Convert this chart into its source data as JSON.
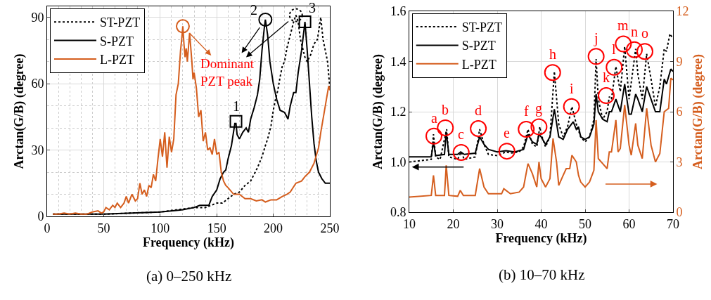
{
  "chart_data": [
    {
      "type": "line",
      "title": "(a) 0–250 kHz",
      "xlabel": "Frequency (kHz)",
      "ylabel": "Arctan(G/B) (degree)",
      "xlim": [
        0,
        250
      ],
      "xticks": [
        0,
        50,
        100,
        150,
        200,
        250
      ],
      "ylim": [
        0,
        95
      ],
      "yticks": [
        0,
        30,
        60,
        90
      ],
      "grid": true,
      "legend": "top left",
      "series": [
        {
          "name": "ST-PZT",
          "color": "#000000",
          "line_style": "dotted",
          "x": [
            5,
            50,
            100,
            130,
            140,
            145,
            150,
            155,
            160,
            165,
            170,
            175,
            180,
            183,
            186,
            190,
            193,
            195,
            198,
            200,
            202,
            204,
            206,
            208,
            210,
            212,
            215,
            218,
            220,
            222,
            224,
            226,
            228,
            230,
            233,
            236,
            239,
            242,
            244,
            246,
            248,
            250
          ],
          "values": [
            1,
            1,
            2,
            4,
            4,
            5,
            6,
            6,
            8,
            10,
            11,
            14,
            16,
            19,
            22,
            27,
            32,
            35,
            41,
            48,
            53,
            57,
            63,
            68,
            70,
            76,
            82,
            88,
            91,
            88,
            80,
            76,
            72,
            70,
            73,
            78,
            80,
            90,
            80,
            75,
            70,
            58
          ]
        },
        {
          "name": "S-PZT",
          "color": "#000000",
          "line_style": "solid",
          "x": [
            5,
            50,
            100,
            120,
            130,
            135,
            140,
            143,
            146,
            150,
            153,
            156,
            158,
            160,
            163,
            166,
            167,
            168,
            170,
            173,
            176,
            178,
            180,
            183,
            186,
            188,
            190,
            192,
            193,
            195,
            197,
            200,
            203,
            206,
            210,
            213,
            215,
            218,
            220,
            222,
            225,
            228,
            230,
            232,
            234,
            236,
            238,
            240,
            243,
            246,
            250
          ],
          "values": [
            1,
            1,
            2,
            3,
            4,
            5,
            5,
            5,
            9,
            12,
            17,
            20,
            21,
            26,
            32,
            42,
            42,
            37,
            35,
            38,
            40,
            38,
            44,
            49,
            55,
            62,
            75,
            85,
            89,
            82,
            70,
            60,
            53,
            48,
            47,
            44,
            50,
            56,
            56,
            65,
            75,
            88,
            75,
            60,
            45,
            33,
            25,
            20,
            17,
            15,
            15
          ]
        },
        {
          "name": "L-PZT",
          "color": "#d55e1e",
          "line_style": "solid",
          "x": [
            5,
            10,
            15,
            20,
            25,
            30,
            35,
            40,
            45,
            48,
            50,
            52,
            55,
            58,
            60,
            62,
            65,
            68,
            70,
            72,
            75,
            78,
            80,
            82,
            84,
            86,
            88,
            90,
            92,
            94,
            96,
            98,
            100,
            102,
            104,
            106,
            108,
            110,
            112,
            114,
            116,
            118,
            119,
            120,
            121,
            122,
            123,
            124,
            126,
            128,
            129,
            130,
            132,
            134,
            136,
            138,
            140,
            142,
            144,
            146,
            148,
            150,
            152,
            154,
            156,
            158,
            160,
            165,
            170,
            175,
            180,
            185,
            190,
            193,
            198,
            203,
            208,
            212,
            215,
            220,
            225,
            228,
            232,
            236,
            240,
            242,
            245,
            247,
            249,
            250
          ],
          "values": [
            1,
            1,
            1.5,
            1,
            1.5,
            1,
            1,
            2,
            2.5,
            1.5,
            2,
            4,
            3,
            5,
            4,
            6,
            4,
            6,
            9,
            6,
            10,
            7,
            8,
            15,
            10,
            12,
            9,
            14,
            13,
            19,
            16,
            26,
            35,
            27,
            38,
            22,
            36,
            29,
            35,
            55,
            60,
            75,
            80,
            86,
            78,
            72,
            76,
            70,
            83,
            70,
            62,
            65,
            58,
            45,
            48,
            34,
            38,
            30,
            31,
            28,
            35,
            28,
            29,
            20,
            16,
            14,
            13,
            10,
            10,
            8,
            8,
            7,
            7.5,
            6.5,
            7.5,
            7.5,
            9,
            10,
            11,
            15,
            16,
            18,
            20,
            24,
            31,
            38,
            47,
            53,
            59,
            57
          ]
        }
      ],
      "annotations": [
        {
          "text": "1",
          "x": 167,
          "y": 43
        },
        {
          "text": "2",
          "x": 193,
          "y": 89
        },
        {
          "text": "3",
          "x": 228,
          "y": 88
        },
        {
          "text": "Dominant PZT peak",
          "x": 120,
          "y": 86
        }
      ]
    },
    {
      "type": "line",
      "title": "(b) 10–70 kHz",
      "xlabel": "Frequency (kHz)",
      "ylabel": "Arctan(G/B) (degree)",
      "y2label": "Arctan(G/B) (degree)",
      "xlim": [
        10,
        70
      ],
      "xticks": [
        10,
        20,
        30,
        40,
        50,
        60,
        70
      ],
      "ylim": [
        0.8,
        1.6
      ],
      "yticks": [
        0.8,
        {
          "value": 1,
          "label": "1.0"
        },
        1.2,
        1.4,
        1.6
      ],
      "y2lim": [
        0,
        12
      ],
      "y2ticks": [
        0,
        3,
        6,
        9,
        12
      ],
      "grid": true,
      "legend": "top left",
      "series": [
        {
          "name": "ST-PZT",
          "color": "#000000",
          "line_style": "dotted",
          "x": [
            10,
            15,
            15.5,
            16,
            17,
            18.5,
            19,
            21,
            21.8,
            22.5,
            25,
            26,
            27,
            28,
            30,
            32,
            33,
            35,
            36,
            37,
            38,
            39,
            39.7,
            40,
            41,
            42,
            43,
            44,
            45,
            46,
            47,
            48,
            49,
            50,
            51,
            52,
            52.5,
            53,
            54,
            55,
            55.5,
            56,
            57,
            58,
            59,
            60,
            61.5,
            62,
            63,
            64,
            65,
            66,
            67,
            68,
            68.5,
            69.3,
            70
          ],
          "values": [
            1.0,
            1.01,
            1.11,
            1.02,
            1.01,
            1.13,
            1.02,
            1.01,
            1.04,
            1.01,
            1.02,
            1.13,
            1.07,
            1.03,
            1.025,
            1.04,
            1.035,
            1.04,
            1.06,
            1.13,
            1.07,
            1.06,
            1.14,
            1.11,
            1.06,
            1.1,
            1.36,
            1.15,
            1.1,
            1.14,
            1.22,
            1.15,
            1.1,
            1.08,
            1.1,
            1.17,
            1.41,
            1.25,
            1.17,
            1.2,
            1.26,
            1.25,
            1.38,
            1.28,
            1.46,
            1.25,
            1.45,
            1.35,
            1.25,
            1.43,
            1.33,
            1.22,
            1.3,
            1.45,
            1.44,
            1.51,
            1.49
          ]
        },
        {
          "name": "S-PZT",
          "color": "#000000",
          "line_style": "solid",
          "x": [
            10,
            15,
            15.5,
            16,
            18,
            18.4,
            19,
            21,
            21.7,
            22.5,
            25,
            26,
            27,
            28,
            30,
            32,
            34,
            36,
            37,
            38,
            39,
            39.5,
            40,
            41,
            42,
            43,
            44,
            45,
            46,
            47.3,
            48,
            48.5,
            49,
            50,
            51,
            52,
            52.5,
            53,
            54,
            55,
            55.5,
            56,
            57,
            58,
            59,
            60,
            60.5,
            61.5,
            62,
            63,
            64,
            65,
            66,
            67,
            68,
            68.5,
            69.5,
            70
          ],
          "values": [
            1.02,
            1.02,
            1.08,
            1.025,
            1.03,
            1.12,
            1.03,
            1.03,
            1.04,
            1.03,
            1.035,
            1.1,
            1.07,
            1.05,
            1.04,
            1.045,
            1.04,
            1.05,
            1.11,
            1.08,
            1.07,
            1.11,
            1.1,
            1.07,
            1.1,
            1.21,
            1.1,
            1.09,
            1.13,
            1.16,
            1.13,
            1.14,
            1.1,
            1.09,
            1.1,
            1.15,
            1.27,
            1.2,
            1.17,
            1.16,
            1.2,
            1.2,
            1.25,
            1.2,
            1.31,
            1.19,
            1.19,
            1.27,
            1.25,
            1.2,
            1.3,
            1.25,
            1.2,
            1.2,
            1.33,
            1.31,
            1.37,
            1.36
          ]
        },
        {
          "name": "L-PZT",
          "color": "#d55e1e",
          "line_style": "solid",
          "axis": "y2",
          "x": [
            10,
            15,
            15.5,
            16,
            18,
            18.4,
            19,
            21,
            21.6,
            22.3,
            25,
            26,
            27,
            28,
            31,
            31.5,
            33,
            35,
            36,
            37,
            38,
            39,
            39.5,
            40,
            41,
            42,
            42.7,
            43.5,
            44,
            45,
            45.7,
            46.5,
            47,
            48,
            48.5,
            49,
            50,
            51,
            52,
            52.5,
            53,
            54,
            55,
            55.5,
            56,
            57,
            57.5,
            58,
            59,
            60,
            60.5,
            61.5,
            62,
            63,
            64,
            65,
            66,
            67,
            68,
            69,
            69.5,
            70
          ],
          "values": [
            0.9,
            1.0,
            2.2,
            1.0,
            1.0,
            2.8,
            1.0,
            0.95,
            1.3,
            1.0,
            1.0,
            2.6,
            1.5,
            1.1,
            1.1,
            1.4,
            1.1,
            1.2,
            1.5,
            2.9,
            2.3,
            1.5,
            3.0,
            2.0,
            1.5,
            2.0,
            4.4,
            3.0,
            1.6,
            2.2,
            2.6,
            2.6,
            3.4,
            3.0,
            2.2,
            1.8,
            1.5,
            1.8,
            2.5,
            5.5,
            3.2,
            2.9,
            2.6,
            3.6,
            3.6,
            5.5,
            3.6,
            3.8,
            6.4,
            4.0,
            3.4,
            5.3,
            4.0,
            3.2,
            6.2,
            4.0,
            3.0,
            3.5,
            6.0,
            6.2,
            8.0,
            7.9
          ]
        }
      ],
      "annotations": [
        {
          "text": "a",
          "x": 15.6,
          "y": 1.103
        },
        {
          "text": "b",
          "x": 18.2,
          "y": 1.136
        },
        {
          "text": "c",
          "x": 21.8,
          "y": 1.038
        },
        {
          "text": "d",
          "x": 25.7,
          "y": 1.133
        },
        {
          "text": "e",
          "x": 32.2,
          "y": 1.043
        },
        {
          "text": "f",
          "x": 36.6,
          "y": 1.13
        },
        {
          "text": "g",
          "x": 39.5,
          "y": 1.14
        },
        {
          "text": "h",
          "x": 42.6,
          "y": 1.356
        },
        {
          "text": "i",
          "x": 46.9,
          "y": 1.22
        },
        {
          "text": "j",
          "x": 52.5,
          "y": 1.42
        },
        {
          "text": "k",
          "x": 54.8,
          "y": 1.264
        },
        {
          "text": "l",
          "x": 56.6,
          "y": 1.377
        },
        {
          "text": "m",
          "x": 58.7,
          "y": 1.47
        },
        {
          "text": "n",
          "x": 61.2,
          "y": 1.447
        },
        {
          "text": "o",
          "x": 63.6,
          "y": 1.44
        }
      ]
    }
  ]
}
